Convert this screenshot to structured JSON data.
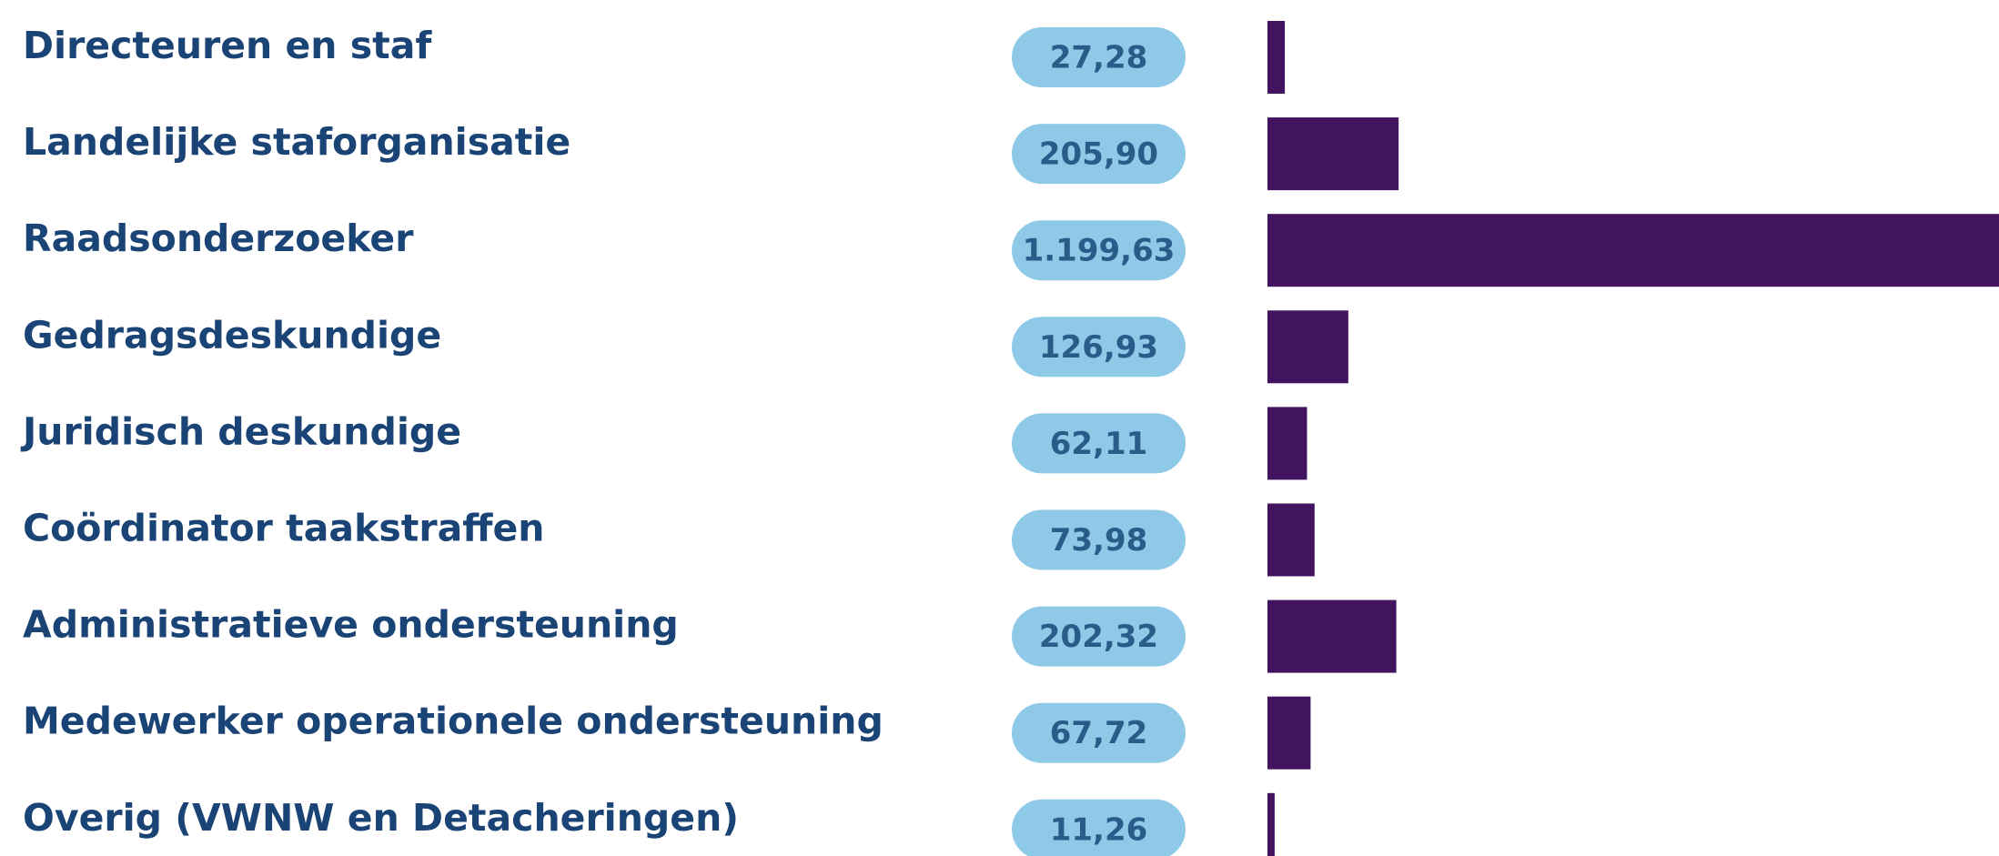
{
  "chart_data": {
    "type": "bar",
    "categories": [
      "Directeuren en staf",
      "Landelijke staforganisatie",
      "Raadsonderzoeker",
      "Gedragsdeskundige",
      "Juridisch deskundige",
      "Coördinator taakstraffen",
      "Administratieve ondersteuning",
      "Medewerker operationele ondersteuning",
      "Overig (VWNW en Detacheringen)"
    ],
    "values": [
      27.28,
      205.9,
      1199.63,
      126.93,
      62.11,
      73.98,
      202.32,
      67.72,
      11.26
    ],
    "value_labels": [
      "27,28",
      "205,90",
      "1.199,63",
      "126,93",
      "62,11",
      "73,98",
      "202,32",
      "67,72",
      "11,26"
    ],
    "color": "#42145f"
  }
}
